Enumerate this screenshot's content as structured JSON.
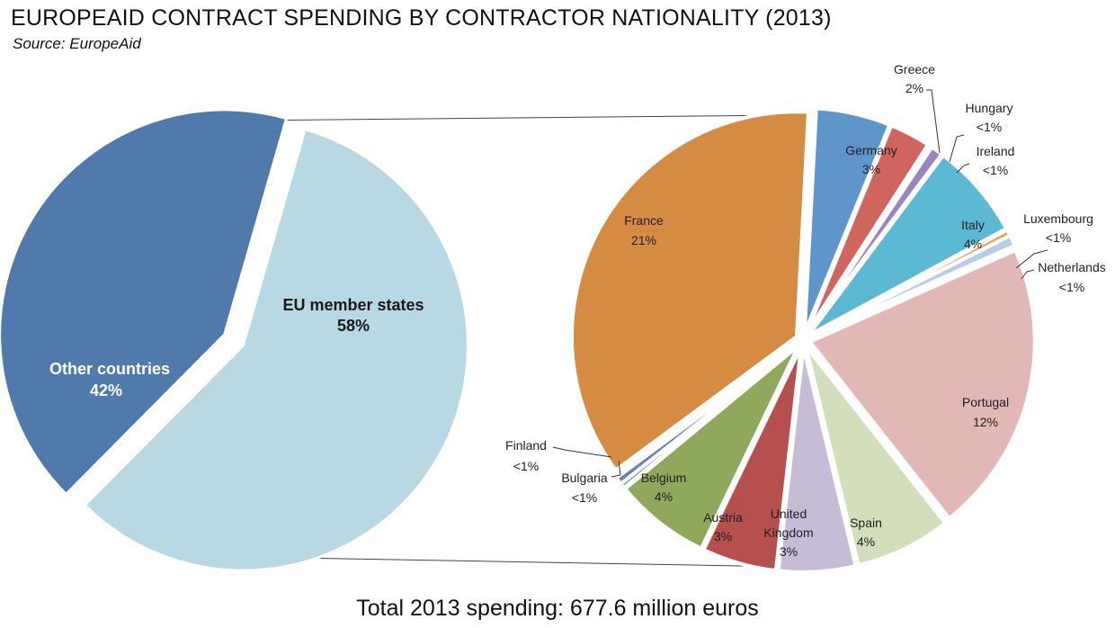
{
  "title": "EUROPEAID CONTRACT SPENDING BY CONTRACTOR NATIONALITY (2013)",
  "subtitle": "Source: EuropeAid",
  "footer": "Total 2013 spending: 677.6 million euros",
  "chart_data": [
    {
      "type": "pie",
      "slices": [
        {
          "name": "EU member states",
          "label_value": "58%",
          "value": 58,
          "color": "#b8d8e4"
        },
        {
          "name": "Other countries",
          "label_value": "42%",
          "value": 42,
          "color": "#4f7aab"
        }
      ]
    },
    {
      "type": "pie",
      "slices": [
        {
          "name": "Germany",
          "label_value": "3%",
          "value": 3.1,
          "color": "#5e96cb"
        },
        {
          "name": "Greece",
          "label_value": "2%",
          "value": 1.7,
          "color": "#d0645e"
        },
        {
          "name": "Hungary",
          "label_value": "<1%",
          "value": 0.15,
          "color": "#8a63a8"
        },
        {
          "name": "Ireland",
          "label_value": "<1%",
          "value": 0.5,
          "color": "#9a86bf"
        },
        {
          "name": "Italy",
          "label_value": "4%",
          "value": 4.0,
          "color": "#5bb9d3"
        },
        {
          "name": "Luxembourg",
          "label_value": "<1%",
          "value": 0.25,
          "color": "#f0a048"
        },
        {
          "name": "Netherlands",
          "label_value": "<1%",
          "value": 0.45,
          "color": "#b7cce6"
        },
        {
          "name": "Portugal",
          "label_value": "12%",
          "value": 12.2,
          "color": "#e2b8b7"
        },
        {
          "name": "Spain",
          "label_value": "4%",
          "value": 4.0,
          "color": "#d3dfbb"
        },
        {
          "name": "United Kingdom",
          "label_value": "3%",
          "value": 3.2,
          "color": "#c6bcd6"
        },
        {
          "name": "Austria",
          "label_value": "3%",
          "value": 3.1,
          "color": "#b5504f"
        },
        {
          "name": "Belgium",
          "label_value": "4%",
          "value": 4.0,
          "color": "#8fa85c"
        },
        {
          "name": "Bulgaria",
          "label_value": "<1%",
          "value": 0.2,
          "color": "#4a8aa5"
        },
        {
          "name": "Finland",
          "label_value": "<1%",
          "value": 0.3,
          "color": "#6e7fb5"
        },
        {
          "name": "France",
          "label_value": "21%",
          "value": 20.85,
          "color": "#d68b43"
        }
      ]
    }
  ]
}
